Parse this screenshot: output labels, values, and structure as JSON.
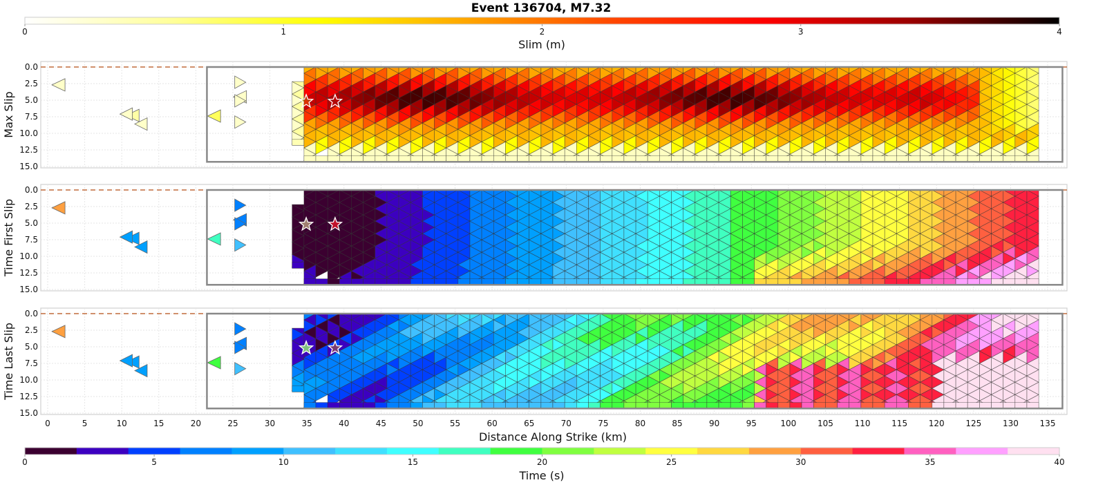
{
  "chart_data": {
    "type": "heatmap",
    "title": "Event 136704, M7.32",
    "xlabel": "Distance Along Strike (km)",
    "xlim": [
      -1,
      138
    ],
    "xticks": [
      0,
      5,
      10,
      15,
      20,
      25,
      30,
      35,
      40,
      45,
      50,
      55,
      60,
      65,
      70,
      75,
      80,
      85,
      90,
      95,
      100,
      105,
      110,
      115,
      120,
      125,
      130,
      135
    ],
    "ylim": [
      15.0,
      0.0
    ],
    "yticks": [
      "0.0",
      "2.5",
      "5.0",
      "7.5",
      "10.0",
      "12.5",
      "15.0"
    ],
    "grid": true,
    "panels": [
      {
        "ylabel": "Max Slip",
        "colorbar": "slip"
      },
      {
        "ylabel": "Time First Slip",
        "colorbar": "time"
      },
      {
        "ylabel": "Time Last Slip",
        "colorbar": "time"
      }
    ],
    "fault_box": {
      "x": [
        21.5,
        137
      ],
      "depth": [
        0,
        14.3
      ]
    },
    "surface_line_depth": 0.0,
    "hypocenters": [
      {
        "x": 34.9,
        "depth": 5.2
      },
      {
        "x": 38.8,
        "depth": 5.2
      }
    ],
    "colorbars": {
      "slip": {
        "label": "Slim (m)",
        "range": [
          0,
          4
        ],
        "ticks": [
          "0",
          "1",
          "2",
          "3",
          "4"
        ],
        "colormap": [
          "#ffffff",
          "#ffff99",
          "#ffff00",
          "#ffa500",
          "#ff4500",
          "#ff0000",
          "#990000",
          "#000000"
        ]
      },
      "time": {
        "label": "Time (s)",
        "range": [
          0,
          40
        ],
        "ticks": [
          "0",
          "5",
          "10",
          "15",
          "20",
          "25",
          "30",
          "35",
          "40"
        ],
        "bins": [
          "#3b0030",
          "#3c00c0",
          "#0040ff",
          "#0080ff",
          "#00a0ff",
          "#40c0ff",
          "#40e0ff",
          "#40ffff",
          "#40ffc0",
          "#40ff40",
          "#80ff40",
          "#c0ff40",
          "#ffff40",
          "#ffd840",
          "#ffa040",
          "#ff6040",
          "#ff2040",
          "#ff60c0",
          "#ffa0ff",
          "#ffe0f0"
        ]
      }
    },
    "isolated_patches": [
      {
        "x": 1.5,
        "depth": 2.7,
        "slip": 0.3,
        "t_first": 28,
        "t_last": 28
      },
      {
        "x": 11.5,
        "depth": 7.3,
        "slip": 0.5,
        "t_first": 9,
        "t_last": 9
      },
      {
        "x": 22.5,
        "depth": 7.4,
        "slip": 0.8,
        "t_first": 17,
        "t_last": 19
      },
      {
        "x": 26,
        "depth": 4.5,
        "slip": 0.3,
        "t_first": 7,
        "t_last": 7
      }
    ]
  }
}
